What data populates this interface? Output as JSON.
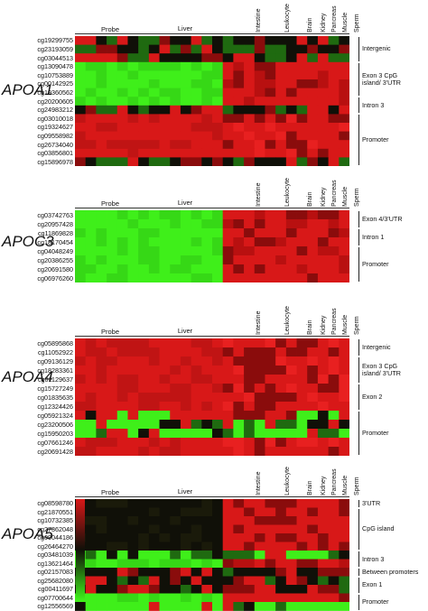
{
  "panels": [
    {
      "gene": "APOA1",
      "probe_header": "Probe",
      "tissues": [
        "Liver",
        "Intestine",
        "Leukocyte",
        "Brain",
        "Kidney",
        "Pancreas",
        "Muscle",
        "Sperm"
      ],
      "probes": [
        "cg19299755",
        "cg23193059",
        "cg03044513",
        "cg13090478",
        "cg10753889",
        "cg00142925",
        "cg19360562",
        "cg20200605",
        "cg24983212",
        "cg03010018",
        "cg19324627",
        "cg09558982",
        "cg26734040",
        "cg03856801",
        "cg15896978"
      ],
      "regions": [
        {
          "label": "Intergenic",
          "rows": [
            0,
            3
          ]
        },
        {
          "label": "Exon 3 CpG\nisland/ 3'UTR",
          "rows": [
            3,
            7
          ]
        },
        {
          "label": "Intron 3",
          "rows": [
            7,
            9
          ]
        },
        {
          "label": "Promoter",
          "rows": [
            9,
            15
          ]
        }
      ],
      "pattern": [
        "mix",
        "mix",
        "mix",
        "G",
        "G",
        "G",
        "G",
        "G",
        "mix",
        "R",
        "R",
        "R",
        "R",
        "R",
        "mix"
      ]
    },
    {
      "gene": "APOC3",
      "probe_header": "Probe",
      "tissues": [
        "Liver",
        "Intestine",
        "Leukocyte",
        "Brain",
        "Kidney",
        "Pancreas",
        "Muscle",
        "Sperm"
      ],
      "probes": [
        "cg03742763",
        "cg20957428",
        "cg11869828",
        "cg18170454",
        "cg04048249",
        "cg20386255",
        "cg20691580",
        "cg06976260"
      ],
      "regions": [
        {
          "label": "Exon 4/3'UTR",
          "rows": [
            0,
            2
          ]
        },
        {
          "label": "Intron 1",
          "rows": [
            2,
            4
          ]
        },
        {
          "label": "Promoter",
          "rows": [
            4,
            8
          ]
        }
      ],
      "pattern": [
        "G",
        "G",
        "G",
        "G",
        "G",
        "G",
        "G",
        "G"
      ]
    },
    {
      "gene": "APOA4",
      "probe_header": "Probe",
      "tissues": [
        "Liver",
        "Intestine",
        "Leukocyte",
        "Brain",
        "Kidney",
        "Pancreas",
        "Muscle",
        "Sperm"
      ],
      "probes": [
        "cg05895868",
        "cg11052922",
        "cg09136129",
        "cg18283361",
        "cg01129637",
        "cg15727249",
        "cg01835635",
        "cg12324426",
        "cg05921324",
        "cg23200506",
        "cg15950203",
        "cg07661246",
        "cg20691428"
      ],
      "regions": [
        {
          "label": "Intergenic",
          "rows": [
            0,
            2
          ]
        },
        {
          "label": "Exon 3 CpG\nisland/ 3'UTR",
          "rows": [
            2,
            5
          ]
        },
        {
          "label": "Exon 2",
          "rows": [
            5,
            8
          ]
        },
        {
          "label": "Promoter",
          "rows": [
            8,
            13
          ]
        }
      ],
      "pattern": [
        "R",
        "R",
        "R",
        "R",
        "R",
        "R",
        "R",
        "R",
        "mixR",
        "mixG",
        "mixG",
        "R",
        "R"
      ]
    },
    {
      "gene": "APOA5",
      "probe_header": "Probe",
      "tissues": [
        "Liver",
        "Intestine",
        "Leukocyte",
        "Brain",
        "Kidney",
        "Pancreas",
        "Muscle",
        "Sperm"
      ],
      "probes": [
        "cg08598780",
        "cg21870551",
        "cg10732385",
        "cg27362048",
        "cg09044186",
        "cg26464270",
        "cg03481039",
        "cg13621464",
        "cg02157083",
        "cg25682080",
        "cg00411697",
        "cg07700644",
        "cg12556569"
      ],
      "regions": [
        {
          "label": "3'UTR",
          "rows": [
            0,
            1
          ]
        },
        {
          "label": "CpG island",
          "rows": [
            1,
            6
          ]
        },
        {
          "label": "Intron 3",
          "rows": [
            6,
            8
          ]
        },
        {
          "label": "Between promoters",
          "rows": [
            8,
            9
          ]
        },
        {
          "label": "Exon 1",
          "rows": [
            9,
            11
          ]
        },
        {
          "label": "Promoter",
          "rows": [
            11,
            13
          ]
        }
      ],
      "pattern": [
        "B",
        "B",
        "B",
        "B",
        "B",
        "B",
        "mixG",
        "G",
        "mix",
        "mix",
        "mix",
        "G",
        "mixG"
      ]
    }
  ],
  "colors": {
    "red": "#d81818",
    "green": "#3fef1a",
    "black": "#101008",
    "darkred": "#8a0c0c",
    "darkgreen": "#1f6a10"
  }
}
